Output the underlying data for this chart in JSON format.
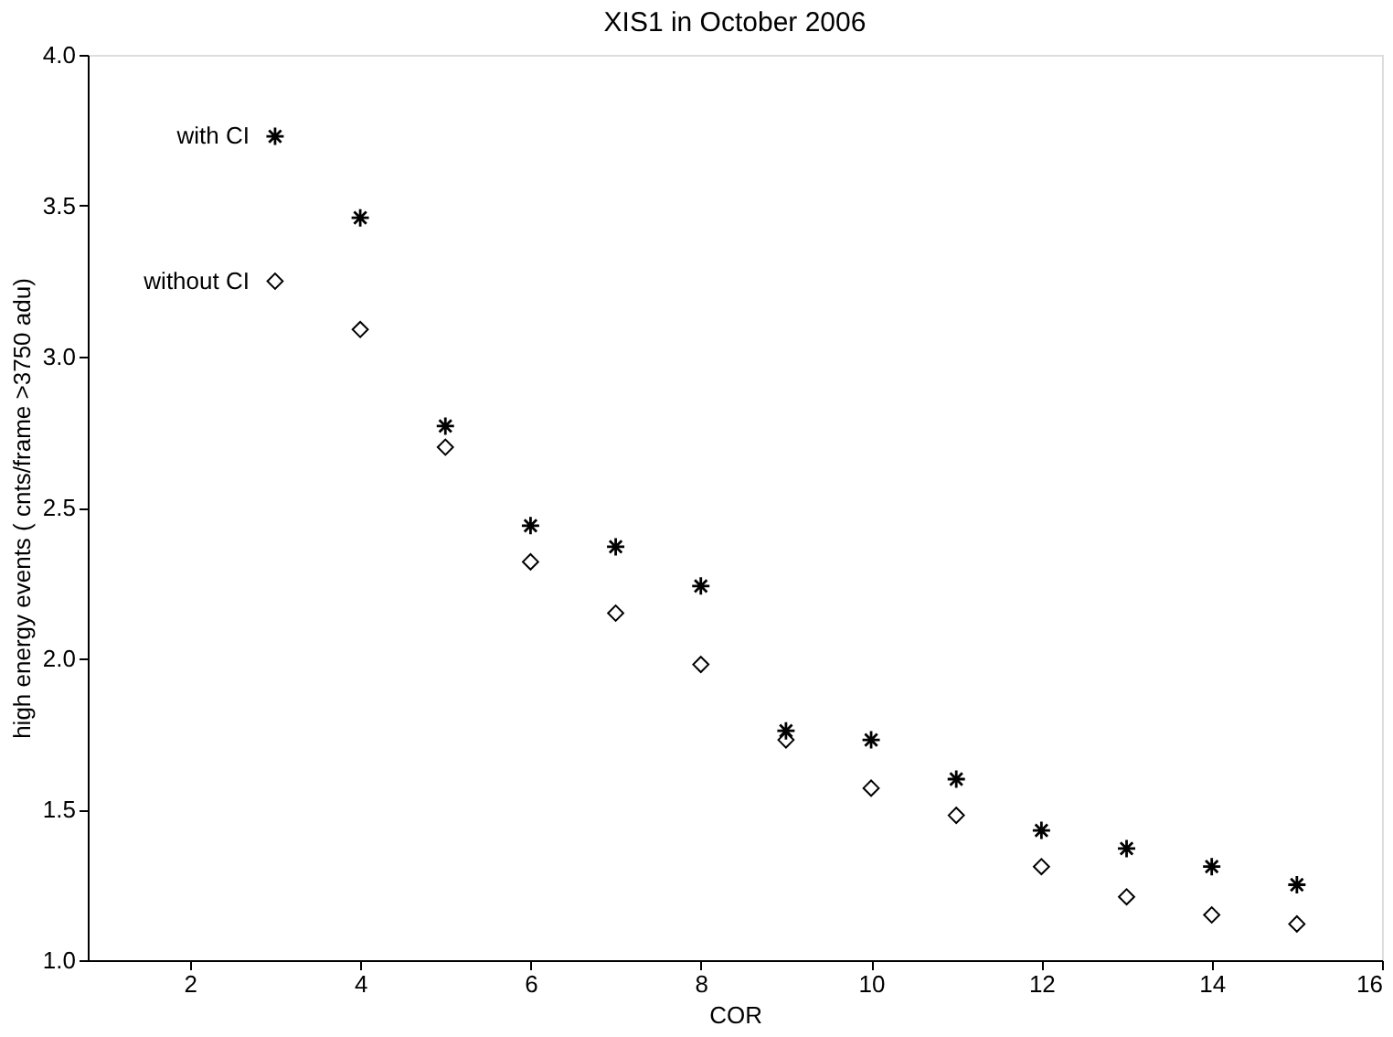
{
  "chart_data": {
    "type": "scatter",
    "title": "XIS1 in October 2006",
    "xlabel": "COR",
    "ylabel": "high energy events ( cnts/frame >3750 adu)",
    "x": [
      3,
      4,
      5,
      6,
      7,
      8,
      9,
      10,
      11,
      12,
      13,
      14,
      15
    ],
    "series": [
      {
        "name": "with CI",
        "color": "#000000",
        "marker": "cross",
        "values": [
          3.73,
          3.46,
          2.77,
          2.44,
          2.37,
          2.24,
          1.76,
          1.73,
          1.6,
          1.43,
          1.37,
          1.31,
          1.25
        ]
      },
      {
        "name": "without CI",
        "color": "#000000",
        "marker": "diamond",
        "values": [
          3.25,
          3.09,
          2.7,
          2.32,
          2.15,
          1.98,
          1.73,
          1.57,
          1.48,
          1.31,
          1.21,
          1.15,
          1.12
        ]
      }
    ],
    "xlim": [
      0.8,
      16
    ],
    "xticks": [
      2,
      4,
      6,
      8,
      10,
      12,
      14,
      16
    ],
    "ylim": [
      1.0,
      4.0
    ],
    "yticks": [
      {
        "value": 1.0,
        "label": "1.0"
      },
      {
        "value": 1.5,
        "label": "1.5"
      },
      {
        "value": 2.0,
        "label": "2.0"
      },
      {
        "value": 2.5,
        "label": "2.5"
      },
      {
        "value": 3.0,
        "label": "3.0"
      },
      {
        "value": 3.5,
        "label": "3.5"
      },
      {
        "value": 4.0,
        "label": "4.0"
      }
    ],
    "grid": false,
    "legend": false
  }
}
